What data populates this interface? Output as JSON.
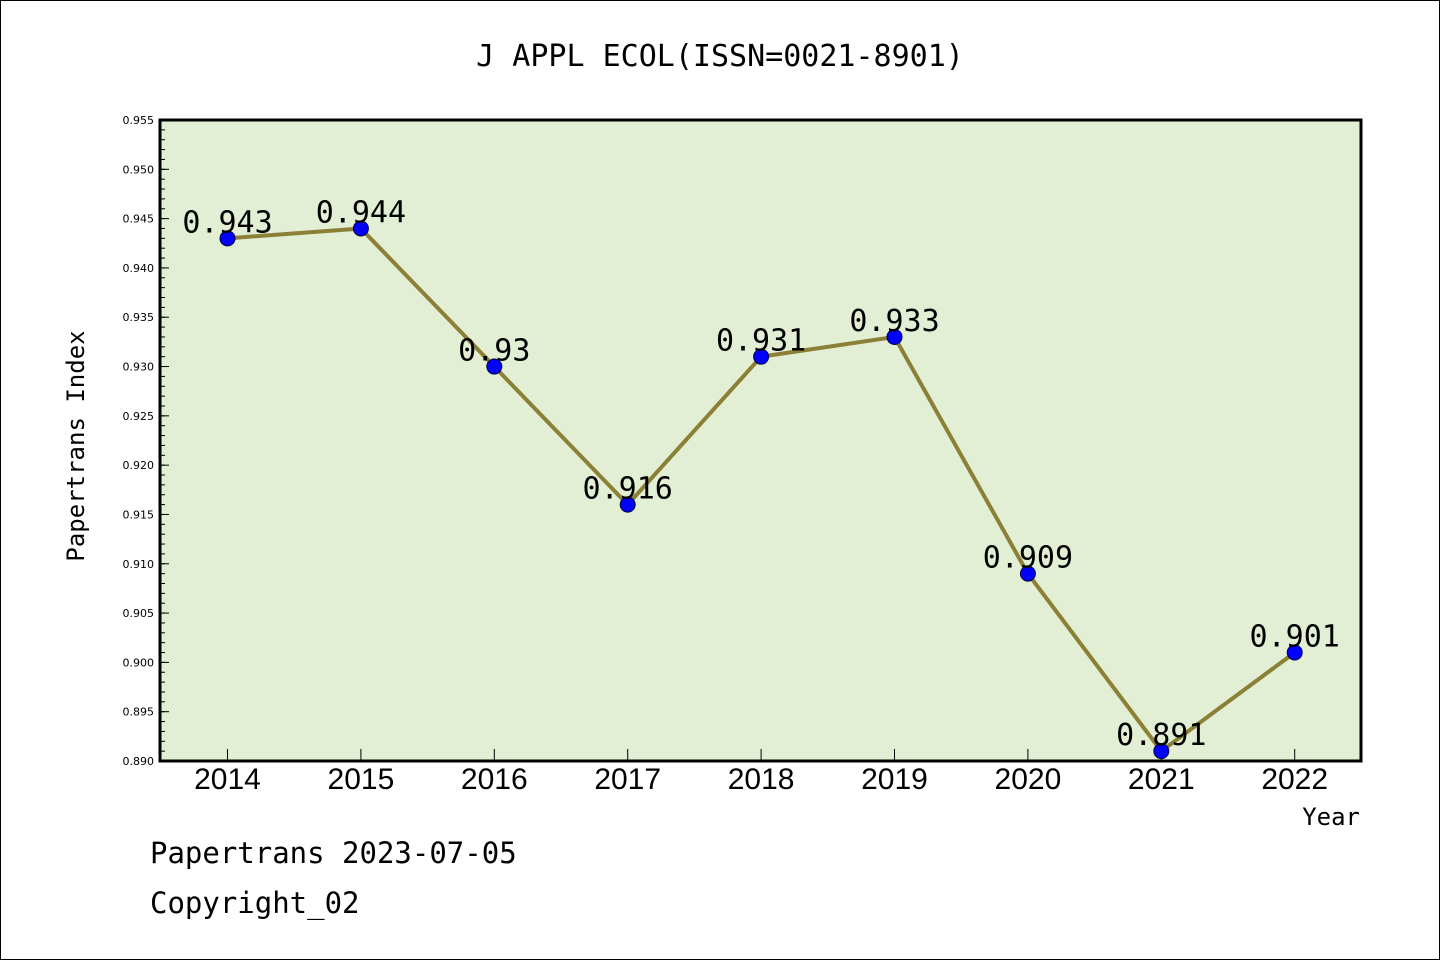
{
  "chart_data": {
    "type": "line",
    "title": "J APPL ECOL(ISSN=0021-8901)",
    "xlabel": "Year",
    "ylabel": "Papertrans Index",
    "categories": [
      "2014",
      "2015",
      "2016",
      "2017",
      "2018",
      "2019",
      "2020",
      "2021",
      "2022"
    ],
    "series": [
      {
        "values": [
          0.943,
          0.944,
          0.93,
          0.916,
          0.931,
          0.933,
          0.909,
          0.891,
          0.901
        ]
      }
    ],
    "data_labels": [
      "0.943",
      "0.944",
      "0.93",
      "0.916",
      "0.931",
      "0.933",
      "0.909",
      "0.891",
      "0.901"
    ],
    "ylim": [
      0.89,
      0.955
    ],
    "yticks": [
      "0.890",
      "0.895",
      "0.900",
      "0.905",
      "0.910",
      "0.915",
      "0.920",
      "0.925",
      "0.930",
      "0.935",
      "0.940",
      "0.945",
      "0.950",
      "0.955"
    ],
    "grid": false,
    "plot_background": "#e2efd5",
    "line_color": "#8b8035",
    "marker_color": "#0000ff"
  },
  "footer": {
    "line1": "Papertrans 2023-07-05",
    "line2": "Copyright_02"
  }
}
